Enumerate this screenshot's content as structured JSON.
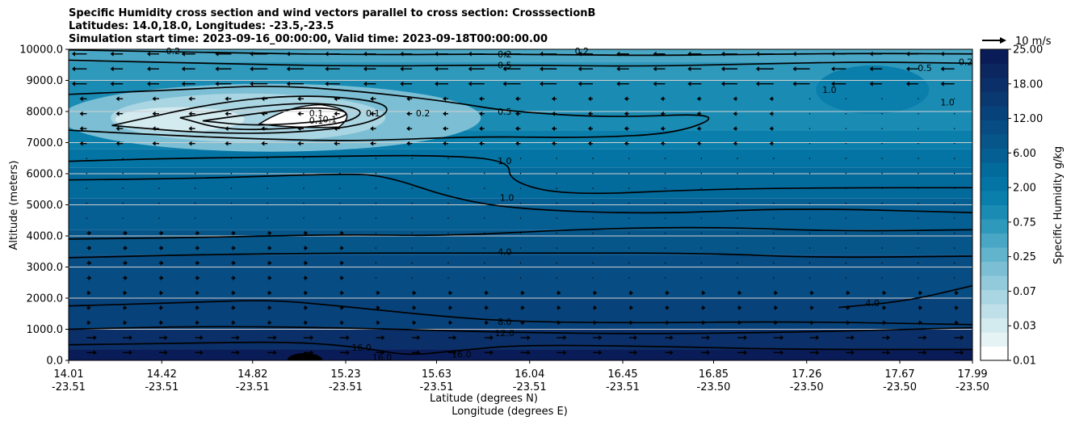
{
  "chart_data": {
    "type": "contour",
    "title_lines": [
      "Specific Humidity cross section and wind vectors parallel to cross section: CrosssectionB",
      "Latitudes: 14.0,18.0, Longitudes: -23.5,-23.5",
      "Simulation start time: 2023-09-16_00:00:00, Valid time: 2023-09-18T00:00:00.00"
    ],
    "ylabel": "Altitude (meters)",
    "xlabel_lines": [
      "Latitude (degrees N)",
      "Longitude (degrees E)"
    ],
    "ylim": [
      0,
      10000
    ],
    "yticks": [
      "0.0",
      "1000.0",
      "2000.0",
      "3000.0",
      "4000.0",
      "5000.0",
      "6000.0",
      "7000.0",
      "8000.0",
      "9000.0",
      "10000.0"
    ],
    "xticks": [
      {
        "lat": "14.01",
        "lon": "-23.51"
      },
      {
        "lat": "14.42",
        "lon": "-23.51"
      },
      {
        "lat": "14.82",
        "lon": "-23.51"
      },
      {
        "lat": "15.23",
        "lon": "-23.51"
      },
      {
        "lat": "15.63",
        "lon": "-23.51"
      },
      {
        "lat": "16.04",
        "lon": "-23.51"
      },
      {
        "lat": "16.45",
        "lon": "-23.51"
      },
      {
        "lat": "16.85",
        "lon": "-23.50"
      },
      {
        "lat": "17.26",
        "lon": "-23.50"
      },
      {
        "lat": "17.67",
        "lon": "-23.50"
      },
      {
        "lat": "17.99",
        "lon": "-23.50"
      }
    ],
    "grid": "horizontal",
    "colorbar": {
      "label": "Specific Humidity g/kg",
      "ticks": [
        "0.01",
        "0.03",
        "0.07",
        "0.25",
        "0.75",
        "2.00",
        "6.00",
        "12.00",
        "18.00",
        "25.00"
      ],
      "colors": [
        "#ffffff",
        "#e6f3f5",
        "#d3eaef",
        "#bfe0e9",
        "#aad5e2",
        "#93cadb",
        "#7cbfd4",
        "#62b3cc",
        "#49a6c4",
        "#2f99bc",
        "#1a8cb4",
        "#0a7fac",
        "#0474a4",
        "#036a9c",
        "#055f93",
        "#06568a",
        "#074c82",
        "#08427a",
        "#0a3870",
        "#0b2f68",
        "#0c2660",
        "#0a1c58"
      ],
      "position": "right"
    },
    "quiver_key": {
      "label": "10 m/s",
      "position": "top-right"
    },
    "contour_levels": [
      {
        "label": "0.1",
        "approx_altitude_m": 7800
      },
      {
        "label": "0.2",
        "approx_altitude_m": 9900
      },
      {
        "label": "0.5",
        "approx_altitude_m": 8000
      },
      {
        "label": "1.0",
        "approx_altitude_m": 6300
      },
      {
        "label": "4.0",
        "approx_altitude_m": 3500
      },
      {
        "label": "8.0",
        "approx_altitude_m": 1250
      },
      {
        "label": "12.0",
        "approx_altitude_m": 900
      },
      {
        "label": "16.0",
        "approx_altitude_m": 400
      }
    ],
    "contour_labels": [
      {
        "text": "0.2",
        "lat": 14.47,
        "alt": 9950
      },
      {
        "text": "0.2",
        "lat": 15.93,
        "alt": 9840
      },
      {
        "text": "0.5",
        "lat": 15.93,
        "alt": 9500
      },
      {
        "text": "0.5",
        "lat": 15.93,
        "alt": 8000
      },
      {
        "text": "0.2",
        "lat": 16.27,
        "alt": 9950
      },
      {
        "text": "0.1",
        "lat": 15.1,
        "alt": 7720
      },
      {
        "text": "0.1",
        "lat": 15.1,
        "alt": 7950
      },
      {
        "text": "0.1",
        "lat": 15.16,
        "alt": 7750
      },
      {
        "text": "0.1",
        "lat": 15.35,
        "alt": 7950
      },
      {
        "text": "0.2",
        "lat": 15.57,
        "alt": 7950
      },
      {
        "text": "1.0",
        "lat": 15.93,
        "alt": 6420
      },
      {
        "text": "1.0",
        "lat": 15.94,
        "alt": 5230
      },
      {
        "text": "4.0",
        "lat": 15.93,
        "alt": 3500
      },
      {
        "text": "8.0",
        "lat": 15.93,
        "alt": 1250
      },
      {
        "text": "12.0",
        "lat": 15.93,
        "alt": 880
      },
      {
        "text": "16.0",
        "lat": 15.3,
        "alt": 420
      },
      {
        "text": "16.0",
        "lat": 15.39,
        "alt": 100
      },
      {
        "text": "16.0",
        "lat": 15.74,
        "alt": 200
      },
      {
        "text": "4.0",
        "lat": 17.55,
        "alt": 1850
      },
      {
        "text": "1.0",
        "lat": 17.36,
        "alt": 8700
      },
      {
        "text": "1.0",
        "lat": 17.88,
        "alt": 8300
      },
      {
        "text": "0.5",
        "lat": 17.78,
        "alt": 9400
      },
      {
        "text": "0.2",
        "lat": 17.96,
        "alt": 9600
      }
    ],
    "contour_lines": [
      {
        "level": "0.2",
        "points": [
          [
            14.01,
            9980
          ],
          [
            14.6,
            9900
          ],
          [
            15.3,
            9820
          ],
          [
            15.9,
            9850
          ],
          [
            16.5,
            9800
          ],
          [
            17.0,
            9830
          ],
          [
            17.5,
            9870
          ],
          [
            17.99,
            9850
          ]
        ]
      },
      {
        "level": "0.5",
        "points": [
          [
            14.01,
            9650
          ],
          [
            14.6,
            9550
          ],
          [
            15.3,
            9450
          ],
          [
            15.9,
            9500
          ],
          [
            16.5,
            9450
          ],
          [
            17.0,
            9520
          ],
          [
            17.5,
            9600
          ],
          [
            17.99,
            9550
          ]
        ]
      },
      {
        "level": "0.5",
        "points": [
          [
            14.01,
            8550
          ],
          [
            14.5,
            8700
          ],
          [
            14.9,
            8850
          ],
          [
            15.3,
            8650
          ],
          [
            15.7,
            8300
          ],
          [
            15.95,
            8000
          ],
          [
            16.4,
            7800
          ],
          [
            16.9,
            7950
          ],
          [
            16.7,
            7300
          ],
          [
            16.3,
            7150
          ],
          [
            15.8,
            7200
          ],
          [
            15.3,
            7050
          ],
          [
            14.9,
            7100
          ],
          [
            14.4,
            7250
          ],
          [
            14.01,
            7400
          ]
        ]
      },
      {
        "level": "0.1",
        "points": [
          [
            14.6,
            7700
          ],
          [
            14.9,
            8000
          ],
          [
            15.1,
            8150
          ],
          [
            15.25,
            8000
          ],
          [
            15.2,
            7750
          ],
          [
            15.0,
            7600
          ],
          [
            14.8,
            7550
          ],
          [
            14.6,
            7700
          ]
        ]
      },
      {
        "level": "0.1",
        "points": [
          [
            14.5,
            7800
          ],
          [
            14.8,
            8150
          ],
          [
            15.1,
            8300
          ],
          [
            15.32,
            8080
          ],
          [
            15.25,
            7650
          ],
          [
            15.0,
            7450
          ],
          [
            14.7,
            7400
          ],
          [
            14.5,
            7800
          ]
        ]
      },
      {
        "level": "0.2",
        "points": [
          [
            14.2,
            7550
          ],
          [
            14.7,
            8350
          ],
          [
            15.1,
            8550
          ],
          [
            15.45,
            8250
          ],
          [
            15.35,
            7600
          ],
          [
            15.0,
            7300
          ],
          [
            14.6,
            7300
          ],
          [
            14.2,
            7550
          ]
        ]
      },
      {
        "level": "1.0",
        "points": [
          [
            14.01,
            6400
          ],
          [
            14.5,
            6500
          ],
          [
            15.1,
            6550
          ],
          [
            15.6,
            6600
          ],
          [
            15.95,
            6450
          ],
          [
            15.95,
            5750
          ],
          [
            16.2,
            5300
          ],
          [
            16.8,
            5500
          ],
          [
            17.4,
            5550
          ],
          [
            17.99,
            5550
          ]
        ]
      },
      {
        "level": "1.0",
        "points": [
          [
            14.01,
            5800
          ],
          [
            14.6,
            5850
          ],
          [
            15.2,
            6000
          ],
          [
            15.4,
            5950
          ],
          [
            15.7,
            5200
          ],
          [
            16.0,
            4850
          ],
          [
            16.6,
            4700
          ],
          [
            17.2,
            4900
          ],
          [
            17.99,
            4750
          ]
        ]
      },
      {
        "level": "4.0",
        "points": [
          [
            14.01,
            3900
          ],
          [
            14.6,
            3950
          ],
          [
            15.2,
            4050
          ],
          [
            15.7,
            4000
          ],
          [
            16.2,
            4200
          ],
          [
            16.8,
            4300
          ],
          [
            17.4,
            4150
          ],
          [
            17.99,
            4200
          ]
        ]
      },
      {
        "level": "4.0",
        "points": [
          [
            14.01,
            3300
          ],
          [
            14.6,
            3400
          ],
          [
            15.2,
            3450
          ],
          [
            15.7,
            3450
          ],
          [
            16.2,
            3450
          ],
          [
            16.8,
            3450
          ],
          [
            17.3,
            3300
          ],
          [
            17.99,
            3350
          ]
        ]
      },
      {
        "level": "4.0",
        "points": [
          [
            17.4,
            1700
          ],
          [
            17.7,
            1900
          ],
          [
            17.99,
            2400
          ]
        ]
      },
      {
        "level": "8.0",
        "points": [
          [
            14.01,
            1750
          ],
          [
            14.5,
            1850
          ],
          [
            14.9,
            1950
          ],
          [
            15.2,
            1750
          ],
          [
            15.6,
            1450
          ],
          [
            15.95,
            1250
          ],
          [
            16.5,
            1200
          ],
          [
            17.2,
            1250
          ],
          [
            17.99,
            1150
          ]
        ]
      },
      {
        "level": "12.0",
        "points": [
          [
            14.01,
            1000
          ],
          [
            14.6,
            1100
          ],
          [
            15.2,
            1050
          ],
          [
            15.7,
            950
          ],
          [
            15.95,
            900
          ],
          [
            16.5,
            850
          ],
          [
            17.2,
            900
          ],
          [
            17.99,
            1050
          ]
        ]
      },
      {
        "level": "16.0",
        "points": [
          [
            14.01,
            500
          ],
          [
            14.5,
            550
          ],
          [
            15.0,
            600
          ],
          [
            15.3,
            420
          ],
          [
            15.5,
            150
          ],
          [
            15.7,
            300
          ],
          [
            16.0,
            500
          ],
          [
            16.6,
            450
          ],
          [
            17.2,
            350
          ],
          [
            17.99,
            350
          ]
        ]
      }
    ]
  }
}
